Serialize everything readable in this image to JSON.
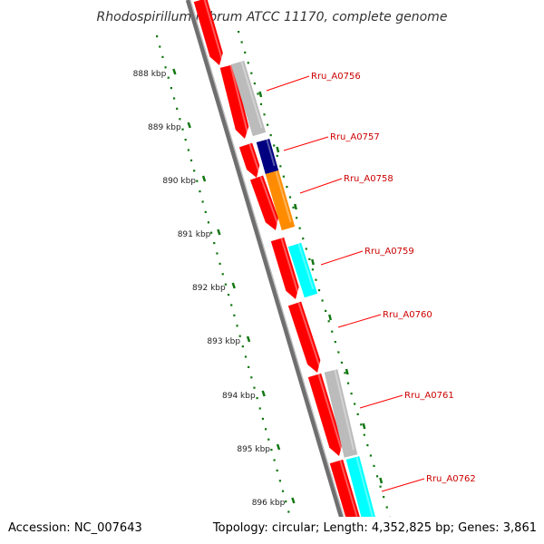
{
  "title": "Rhodospirillum rubrum ATCC 11170, complete genome",
  "footer": {
    "accession": "Accession: NC_007643",
    "topology": "Topology: circular; Length: 4,352,825 bp; Genes: 3,861"
  },
  "colors": {
    "backbone": "#777777",
    "dots": "#117711",
    "forward_gene": "#ff0000",
    "grey_gene": "#bbbbbb",
    "navy_gene": "#000080",
    "orange_gene": "#ff8c00",
    "cyan_gene": "#00ffff",
    "label": "#cc0000",
    "label_line": "#ff0000"
  },
  "ruler_labels": [
    "888 kbp",
    "889 kbp",
    "890 kbp",
    "891 kbp",
    "892 kbp",
    "893 kbp",
    "894 kbp",
    "895 kbp",
    "896 kbp"
  ],
  "gene_labels": [
    "Rru_A0756",
    "Rru_A0757",
    "Rru_A0758",
    "Rru_A0759",
    "Rru_A0760",
    "Rru_A0761",
    "Rru_A0762"
  ]
}
